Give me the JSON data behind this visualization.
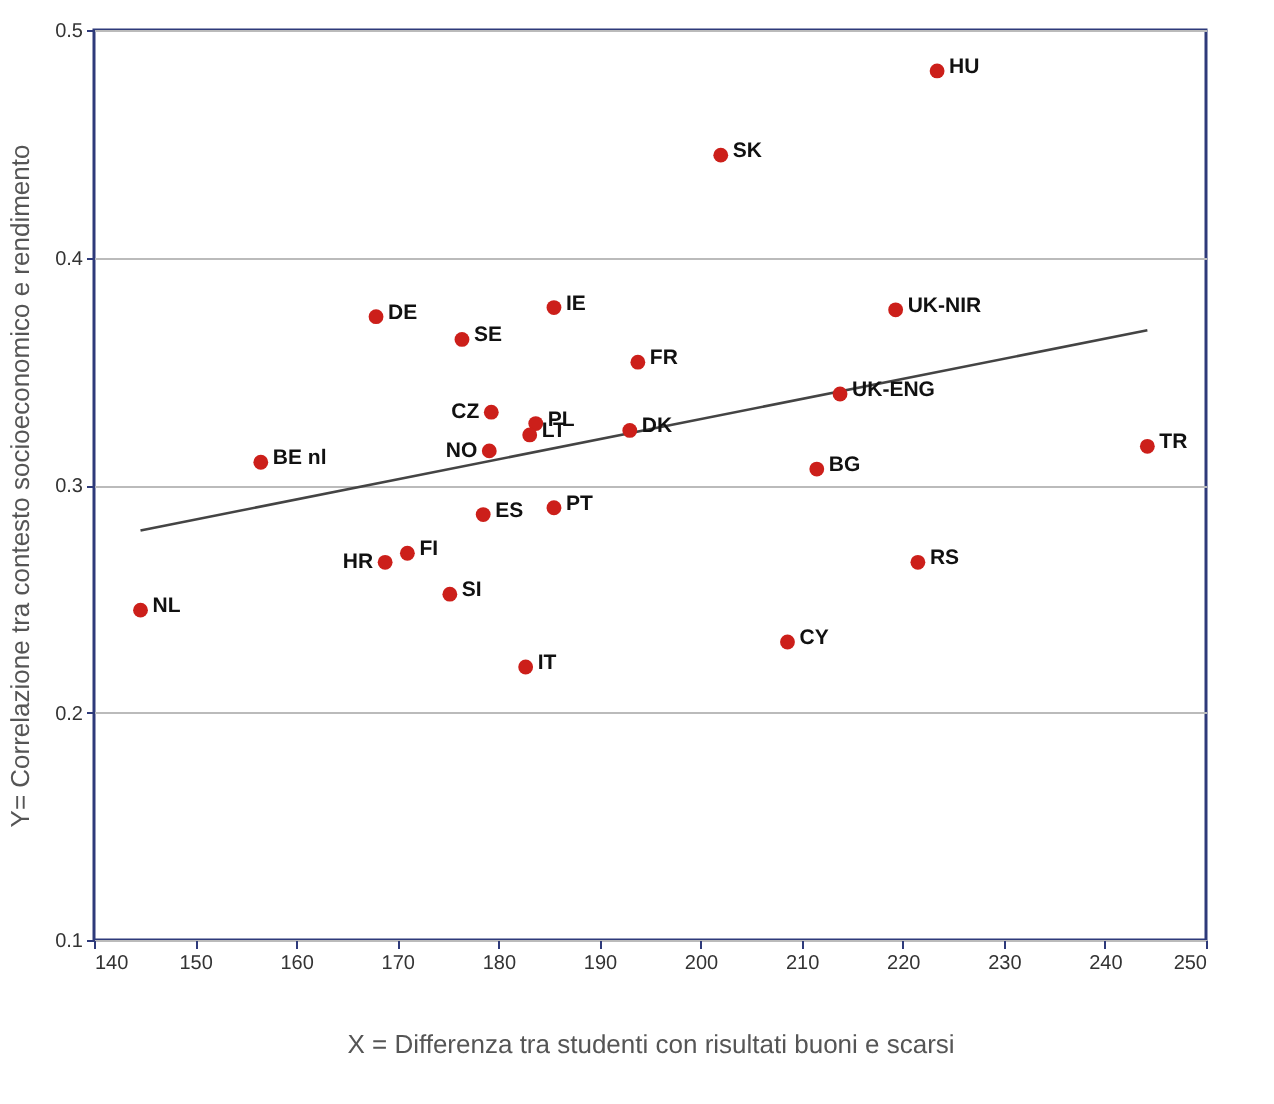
{
  "chart_data": {
    "type": "scatter",
    "xlabel": "X = Differenza tra studenti con risultati buoni e scarsi",
    "ylabel": "Y= Correlazione tra contesto socioeconomico e rendimento",
    "xlim": [
      140,
      250
    ],
    "xticks": [
      140,
      150,
      160,
      170,
      180,
      190,
      200,
      210,
      220,
      230,
      240,
      250
    ],
    "ylim": [
      0.1,
      0.5
    ],
    "yticks": [
      0.1,
      0.2,
      0.3,
      0.4,
      0.5
    ],
    "grid": "y",
    "marker": "circle",
    "series": [
      {
        "name": "NL",
        "color": "#cc1f1a",
        "x": [
          144.6
        ],
        "values": [
          0.245
        ]
      },
      {
        "name": "BE nl",
        "color": "#cc1f1a",
        "x": [
          156.5
        ],
        "values": [
          0.31
        ]
      },
      {
        "name": "DE",
        "color": "#cc1f1a",
        "x": [
          167.9
        ],
        "values": [
          0.374
        ]
      },
      {
        "name": "SE",
        "color": "#cc1f1a",
        "x": [
          176.4
        ],
        "values": [
          0.364
        ]
      },
      {
        "name": "IE",
        "color": "#cc1f1a",
        "x": [
          185.5
        ],
        "values": [
          0.378
        ]
      },
      {
        "name": "FR",
        "color": "#cc1f1a",
        "x": [
          193.8
        ],
        "values": [
          0.354
        ]
      },
      {
        "name": "CZ",
        "color": "#cc1f1a",
        "x": [
          179.3
        ],
        "values": [
          0.332
        ]
      },
      {
        "name": "PL",
        "color": "#cc1f1a",
        "x": [
          183.7
        ],
        "values": [
          0.327
        ]
      },
      {
        "name": "LT",
        "color": "#cc1f1a",
        "x": [
          183.1
        ],
        "values": [
          0.322
        ]
      },
      {
        "name": "NO",
        "color": "#cc1f1a",
        "x": [
          179.1
        ],
        "values": [
          0.315
        ]
      },
      {
        "name": "DK",
        "color": "#cc1f1a",
        "x": [
          193.0
        ],
        "values": [
          0.324
        ]
      },
      {
        "name": "HU",
        "color": "#cc1f1a",
        "x": [
          223.4
        ],
        "values": [
          0.482
        ]
      },
      {
        "name": "SK",
        "color": "#cc1f1a",
        "x": [
          202.0
        ],
        "values": [
          0.445
        ]
      },
      {
        "name": "UK-NIR",
        "color": "#cc1f1a",
        "x": [
          219.3
        ],
        "values": [
          0.377
        ]
      },
      {
        "name": "UK-ENG",
        "color": "#cc1f1a",
        "x": [
          213.8
        ],
        "values": [
          0.34
        ]
      },
      {
        "name": "TR",
        "color": "#cc1f1a",
        "x": [
          244.2
        ],
        "values": [
          0.317
        ]
      },
      {
        "name": "BG",
        "color": "#cc1f1a",
        "x": [
          211.5
        ],
        "values": [
          0.307
        ]
      },
      {
        "name": "ES",
        "color": "#cc1f1a",
        "x": [
          178.5
        ],
        "values": [
          0.287
        ]
      },
      {
        "name": "PT",
        "color": "#cc1f1a",
        "x": [
          185.5
        ],
        "values": [
          0.29
        ]
      },
      {
        "name": "HR",
        "color": "#cc1f1a",
        "x": [
          168.8
        ],
        "values": [
          0.266
        ]
      },
      {
        "name": "FI",
        "color": "#cc1f1a",
        "x": [
          171.0
        ],
        "values": [
          0.27
        ]
      },
      {
        "name": "SI",
        "color": "#cc1f1a",
        "x": [
          175.2
        ],
        "values": [
          0.252
        ]
      },
      {
        "name": "IT",
        "color": "#cc1f1a",
        "x": [
          182.7
        ],
        "values": [
          0.22
        ]
      },
      {
        "name": "RS",
        "color": "#cc1f1a",
        "x": [
          221.5
        ],
        "values": [
          0.266
        ]
      },
      {
        "name": "CY",
        "color": "#cc1f1a",
        "x": [
          208.6
        ],
        "values": [
          0.231
        ]
      },
      {
        "type": "line",
        "marker": "none",
        "color": "#444444",
        "x": [
          144.6,
          244.2
        ],
        "values": [
          0.28,
          0.368
        ]
      }
    ]
  }
}
